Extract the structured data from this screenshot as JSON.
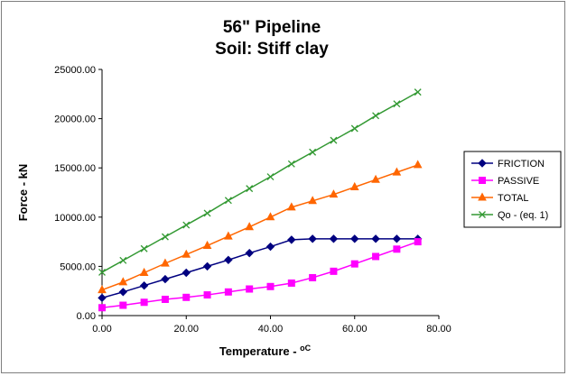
{
  "chart_data": {
    "type": "line",
    "title": [
      "56\" Pipeline",
      "Soil: Stiff clay"
    ],
    "xlabel": "Temperature - ",
    "xlabel_unit": "oC",
    "ylabel": "Force - kN",
    "xlim": [
      0,
      80
    ],
    "ylim": [
      0,
      25000
    ],
    "x_ticks": [
      "0.00",
      "20.00",
      "40.00",
      "60.00",
      "80.00"
    ],
    "y_ticks": [
      "0.00",
      "5000.00",
      "10000.00",
      "15000.00",
      "20000.00",
      "25000.00"
    ],
    "grid": false,
    "legend_position": "right",
    "x": [
      0,
      5,
      10,
      15,
      20,
      25,
      30,
      35,
      40,
      45,
      50,
      55,
      60,
      65,
      70,
      75
    ],
    "series": [
      {
        "name": "FRICTION",
        "color": "#000080",
        "marker": "diamond",
        "values": [
          1800,
          2400,
          3050,
          3700,
          4350,
          5000,
          5650,
          6350,
          7000,
          7700,
          7800,
          7800,
          7800,
          7800,
          7800,
          7800
        ]
      },
      {
        "name": "PASSIVE",
        "color": "#ff00ff",
        "marker": "square",
        "values": [
          800,
          1050,
          1350,
          1650,
          1850,
          2100,
          2400,
          2700,
          2950,
          3300,
          3850,
          4500,
          5250,
          6000,
          6750,
          7500
        ]
      },
      {
        "name": "TOTAL",
        "color": "#ff6600",
        "marker": "triangle",
        "values": [
          2600,
          3400,
          4350,
          5300,
          6200,
          7100,
          8050,
          9000,
          10000,
          11000,
          11650,
          12300,
          13050,
          13800,
          14550,
          15300
        ]
      },
      {
        "name": "Qo - (eq. 1)",
        "color": "#339933",
        "marker": "x",
        "values": [
          4400,
          5600,
          6800,
          8000,
          9200,
          10400,
          11700,
          12900,
          14100,
          15400,
          16600,
          17800,
          19000,
          20300,
          21500,
          22700
        ]
      }
    ]
  }
}
